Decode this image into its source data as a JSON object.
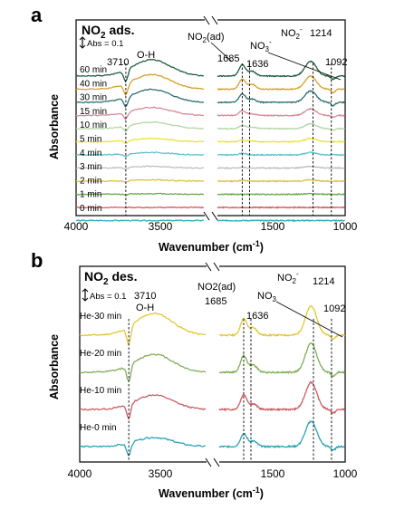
{
  "panels": [
    {
      "letter": "a",
      "title": "NO",
      "title_sub": "2",
      "title_rest": " ads.",
      "scale_bar": "Abs = 0.1",
      "ylabel": "Absorbance",
      "xlabel": "Wavenumber (cm",
      "xlabel_sup": "-1",
      "xlabel_end": ")",
      "xticks": [
        "4000",
        "3500",
        "1500",
        "1000"
      ],
      "annotations": {
        "oh_num": "3710",
        "oh": "O-H",
        "no2ad_a": "NO",
        "no2ad_b": "2",
        "no2ad_c": "(ad)",
        "p1685": "1685",
        "p1636": "1636",
        "no3_a": "NO",
        "no3_b": "3",
        "no3_c": "-",
        "no2m_a": "NO",
        "no2m_b": "2",
        "no2m_c": "-",
        "p1214": "1214",
        "p1092": "1092"
      },
      "traces": [
        "60 min",
        "40 min",
        "30 min",
        "15 min",
        "10 min",
        "5 min",
        "4 min",
        "3 min",
        "2 min",
        "1 min",
        "0 min"
      ]
    },
    {
      "letter": "b",
      "title": "NO",
      "title_sub": "2",
      "title_rest": " des.",
      "scale_bar": "Abs = 0.1",
      "ylabel": "Absorbance",
      "xlabel": "Wavenumber (cm",
      "xlabel_sup": "-1",
      "xlabel_end": ")",
      "xticks": [
        "4000",
        "3500",
        "1500",
        "1000"
      ],
      "annotations": {
        "oh_num": "3710",
        "oh": "O-H",
        "no2ad": "NO2(ad)",
        "p1685": "1685",
        "p1636": "1636",
        "no3_a": "NO",
        "no3_b": "3",
        "no2m_a": "NO",
        "no2m_b": "2",
        "no2m_c": "-",
        "p1214": "1214",
        "p1092": "1092"
      },
      "traces": [
        "He-30 min",
        "He-20 min",
        "He-10 min",
        "He-0 min"
      ]
    }
  ],
  "chart_data": [
    {
      "type": "line",
      "title": "NO2 ads.",
      "xlabel": "Wavenumber (cm-1)",
      "ylabel": "Absorbance",
      "x_axis": "reversed, broken between ~3200 and ~1850 cm-1",
      "xlim_left_segment": [
        4000,
        3250
      ],
      "xlim_right_segment": [
        1850,
        1000
      ],
      "scale_bar": "Abs = 0.1",
      "reference_lines": [
        3710,
        1685,
        1636,
        1214,
        1092
      ],
      "series": [
        {
          "name": "60 min",
          "color": "#1d5c3e",
          "features": {
            "3710": -0.07,
            "3580": 0.1,
            "1685": 0.07,
            "1636": 0.03,
            "1214": 0.09,
            "1092": -0.02
          }
        },
        {
          "name": "40 min",
          "color": "#d6a12a",
          "features": {
            "3710": -0.07,
            "3580": 0.09,
            "1685": 0.06,
            "1636": 0.03,
            "1214": 0.08,
            "1092": -0.02
          }
        },
        {
          "name": "30 min",
          "color": "#2a6e72",
          "features": {
            "3710": -0.06,
            "3580": 0.08,
            "1685": 0.05,
            "1636": 0.02,
            "1214": 0.07,
            "1092": -0.02
          }
        },
        {
          "name": "15 min",
          "color": "#d88a9a",
          "features": {
            "3710": -0.04,
            "3580": 0.05,
            "1685": 0.03,
            "1636": 0.01,
            "1214": 0.04,
            "1092": -0.01
          }
        },
        {
          "name": "10 min",
          "color": "#b5d6a6",
          "features": {
            "3710": -0.03,
            "3580": 0.04,
            "1685": 0.02,
            "1636": 0.01,
            "1214": 0.03,
            "1092": -0.01
          }
        },
        {
          "name": "5 min",
          "color": "#ece330",
          "features": {
            "3710": -0.02,
            "3580": 0.02,
            "1685": 0.01,
            "1636": 0.005,
            "1214": 0.02,
            "1092": 0.0
          }
        },
        {
          "name": "4 min",
          "color": "#5fbfd0",
          "features": {
            "3710": -0.015,
            "3580": 0.015,
            "1685": 0.01,
            "1636": 0.0,
            "1214": 0.015,
            "1092": 0.0
          }
        },
        {
          "name": "3 min",
          "color": "#bfbfbf",
          "features": {
            "3710": -0.01,
            "3580": 0.01,
            "1685": 0.005,
            "1636": 0.0,
            "1214": 0.01,
            "1092": 0.0
          }
        },
        {
          "name": "2 min",
          "color": "#d9c045",
          "features": {
            "3710": -0.01,
            "3580": 0.008,
            "1685": 0.005,
            "1636": 0.0,
            "1214": 0.008,
            "1092": 0.0
          }
        },
        {
          "name": "1 min",
          "color": "#6aaa4a",
          "features": {
            "3710": -0.005,
            "3580": 0.004,
            "1685": 0.0,
            "1636": 0.0,
            "1214": 0.004,
            "1092": 0.0
          }
        },
        {
          "name": "0 min",
          "color": "#d05a62",
          "features": {
            "3710": 0.0,
            "3580": 0.0,
            "1685": 0.0,
            "1636": 0.0,
            "1214": 0.0,
            "1092": 0.0
          }
        },
        {
          "name": "",
          "color": "#2aabb9",
          "features": {
            "3710": 0.0,
            "3580": 0.0,
            "1685": 0.0,
            "1636": 0.0,
            "1214": 0.0,
            "1092": 0.0
          }
        }
      ]
    },
    {
      "type": "line",
      "title": "NO2 des.",
      "xlabel": "Wavenumber (cm-1)",
      "ylabel": "Absorbance",
      "x_axis": "reversed, broken between ~3200 and ~1850 cm-1",
      "xlim_left_segment": [
        4000,
        3250
      ],
      "xlim_right_segment": [
        1850,
        1000
      ],
      "scale_bar": "Abs = 0.1",
      "reference_lines": [
        3710,
        1685,
        1636,
        1214,
        1092
      ],
      "series": [
        {
          "name": "He-30 min",
          "color": "#e3c634",
          "features": {
            "3710": -0.1,
            "3580": 0.12,
            "1685": 0.09,
            "1636": 0.04,
            "1214": 0.16,
            "1092": -0.02
          }
        },
        {
          "name": "He-20 min",
          "color": "#7fae55",
          "features": {
            "3710": -0.09,
            "3580": 0.1,
            "1685": 0.09,
            "1636": 0.04,
            "1214": 0.16,
            "1092": -0.02
          }
        },
        {
          "name": "He-10 min",
          "color": "#d05a62",
          "features": {
            "3710": -0.08,
            "3580": 0.08,
            "1685": 0.08,
            "1636": 0.03,
            "1214": 0.15,
            "1092": -0.02
          }
        },
        {
          "name": "He-0 min",
          "color": "#2aa3b6",
          "features": {
            "3710": -0.07,
            "3580": 0.05,
            "1685": 0.07,
            "1636": 0.03,
            "1214": 0.14,
            "1092": -0.02
          }
        }
      ]
    }
  ]
}
